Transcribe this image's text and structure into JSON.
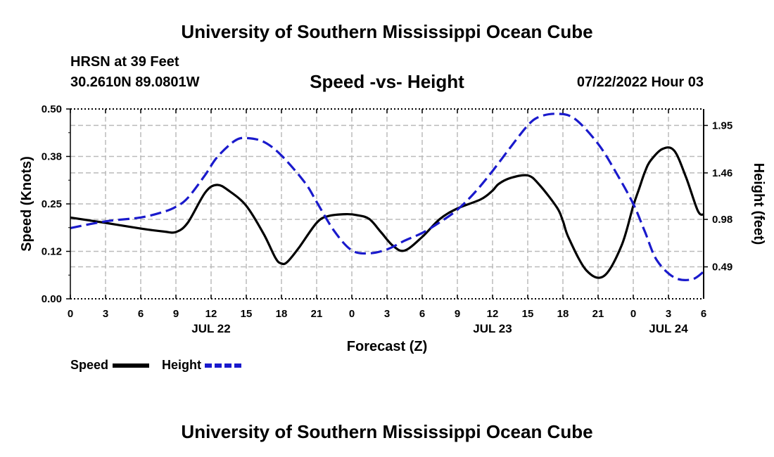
{
  "page": {
    "title": "University of Southern Mississippi Ocean Cube",
    "station": "HRSN at 39 Feet",
    "location": "30.2610N  89.0801W",
    "date": "07/22/2022 Hour 03",
    "footer_title": "University of Southern Mississippi Ocean Cube"
  },
  "legend": {
    "speed_label": "Speed",
    "height_label": "Height"
  },
  "colors": {
    "speed": "#000000",
    "height": "#1a1acc",
    "grid": "#bbbbbb"
  },
  "chart_data": {
    "type": "line",
    "title": "Speed -vs- Height",
    "xlabel": "Forecast (Z)",
    "ylabel": "Speed (Knots)",
    "y2label": "Height (feet)",
    "xlim": [
      0,
      54
    ],
    "ylim": [
      0,
      0.5
    ],
    "y2lim": [
      0.16,
      2.12
    ],
    "x_tick_values": [
      0,
      3,
      6,
      9,
      12,
      15,
      18,
      21,
      24,
      27,
      30,
      33,
      36,
      39,
      42,
      45,
      48,
      51,
      54
    ],
    "x_tick_labels": [
      "0",
      "3",
      "6",
      "9",
      "12",
      "15",
      "18",
      "21",
      "0",
      "3",
      "6",
      "9",
      "12",
      "15",
      "18",
      "21",
      "0",
      "3",
      "6"
    ],
    "date_labels": [
      {
        "x": 12,
        "label": "JUL 22"
      },
      {
        "x": 36,
        "label": "JUL 23"
      },
      {
        "x": 51,
        "label": "JUL 24"
      }
    ],
    "y_ticks": [
      0,
      0.125,
      0.25,
      0.375,
      0.5
    ],
    "y_tick_labels": [
      "0.00",
      "0.12",
      "0.25",
      "0.38",
      "0.50"
    ],
    "y2_ticks": [
      0.49,
      0.98,
      1.46,
      1.95
    ],
    "y2_tick_labels": [
      "0.49",
      "0.98",
      "1.46",
      "1.95"
    ],
    "series": [
      {
        "name": "Speed",
        "axis": "left",
        "style": "solid",
        "x": [
          0,
          3,
          6,
          8,
          9,
          10,
          11.5,
          12.5,
          13.5,
          15,
          16.5,
          17.5,
          18,
          18.5,
          19.5,
          21,
          22,
          23.5,
          24.5,
          25.5,
          26.5,
          27.5,
          28.5,
          30,
          31.5,
          33,
          35,
          36,
          36.5,
          37.5,
          39,
          40,
          41.5,
          42,
          42.5,
          44,
          45.5,
          47,
          48,
          48.5,
          49,
          49.5,
          50.5,
          51.5,
          52.5,
          53.5,
          54
        ],
        "y": [
          0.214,
          0.2,
          0.185,
          0.177,
          0.176,
          0.2,
          0.28,
          0.3,
          0.285,
          0.245,
          0.17,
          0.107,
          0.093,
          0.097,
          0.135,
          0.2,
          0.218,
          0.223,
          0.22,
          0.21,
          0.175,
          0.14,
          0.127,
          0.163,
          0.21,
          0.238,
          0.262,
          0.285,
          0.302,
          0.318,
          0.325,
          0.3,
          0.24,
          0.205,
          0.16,
          0.075,
          0.06,
          0.14,
          0.245,
          0.29,
          0.335,
          0.365,
          0.395,
          0.39,
          0.32,
          0.232,
          0.222
        ]
      },
      {
        "name": "Height",
        "axis": "right",
        "style": "dashed",
        "x": [
          0,
          3,
          6,
          8,
          9,
          10,
          11.5,
          12.5,
          14,
          15,
          16.5,
          18,
          20,
          21,
          22.5,
          24,
          25.5,
          27,
          28.5,
          30,
          31.5,
          33,
          34.5,
          36,
          37.5,
          39,
          40,
          41.5,
          43,
          45,
          46.5,
          48,
          49,
          50,
          51.5,
          53,
          54
        ],
        "y": [
          0.89,
          0.96,
          1.0,
          1.06,
          1.11,
          1.2,
          1.44,
          1.62,
          1.79,
          1.82,
          1.78,
          1.64,
          1.36,
          1.16,
          0.86,
          0.66,
          0.63,
          0.67,
          0.76,
          0.84,
          0.95,
          1.08,
          1.26,
          1.48,
          1.72,
          1.95,
          2.04,
          2.07,
          2.02,
          1.76,
          1.47,
          1.14,
          0.85,
          0.56,
          0.38,
          0.36,
          0.44
        ]
      }
    ]
  }
}
